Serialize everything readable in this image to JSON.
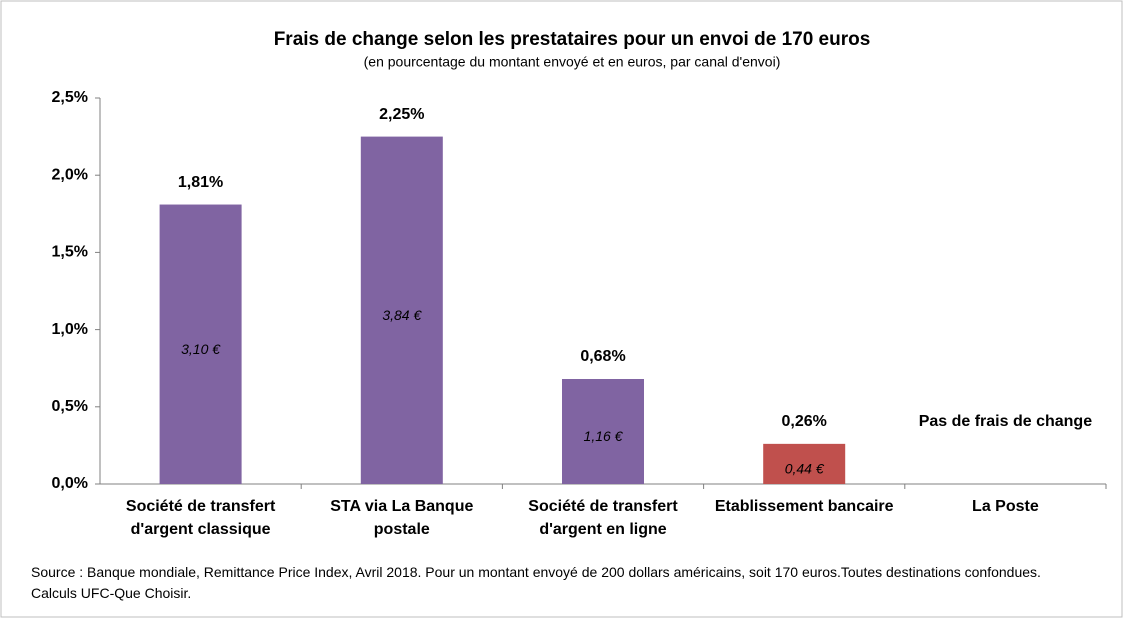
{
  "chart_data": {
    "type": "bar",
    "title": "Frais de change selon les prestataires pour un envoi de 170 euros",
    "subtitle": "(en pourcentage  du montant envoyé  et en euros, par canal d'envoi)",
    "categories": [
      "Société de transfert d'argent classique",
      "STA via La Banque postale",
      "Société de transfert d'argent en ligne",
      "Etablissement bancaire",
      "La Poste"
    ],
    "values": [
      1.81,
      2.25,
      0.68,
      0.26,
      null
    ],
    "value_labels": [
      "1,81%",
      "2,25%",
      "0,68%",
      "0,26%",
      null
    ],
    "euro_values": [
      3.1,
      3.84,
      1.16,
      0.44,
      null
    ],
    "euro_labels": [
      "3,10 €",
      "3,84 €",
      "1,16 €",
      "0,44 €",
      null
    ],
    "colors": [
      "#8064a2",
      "#8064a2",
      "#8064a2",
      "#c0504d",
      null
    ],
    "annotation": "Pas de frais de change",
    "ylim": [
      0,
      2.5
    ],
    "yticks": [
      {
        "value": 0,
        "label": "0,0%"
      },
      {
        "value": 0.5,
        "label": "0,5%"
      },
      {
        "value": 1,
        "label": "1,0%"
      },
      {
        "value": 1.5,
        "label": "1,5%"
      },
      {
        "value": 2,
        "label": "2,0%"
      },
      {
        "value": 2.5,
        "label": "2,5%"
      }
    ],
    "source": "Source : Banque mondiale, Remittance Price Index, Avril 2018. Pour un montant envoyé de 200 dollars américains, soit 170 euros.Toutes destinations confondues. Calculs UFC-Que Choisir."
  }
}
